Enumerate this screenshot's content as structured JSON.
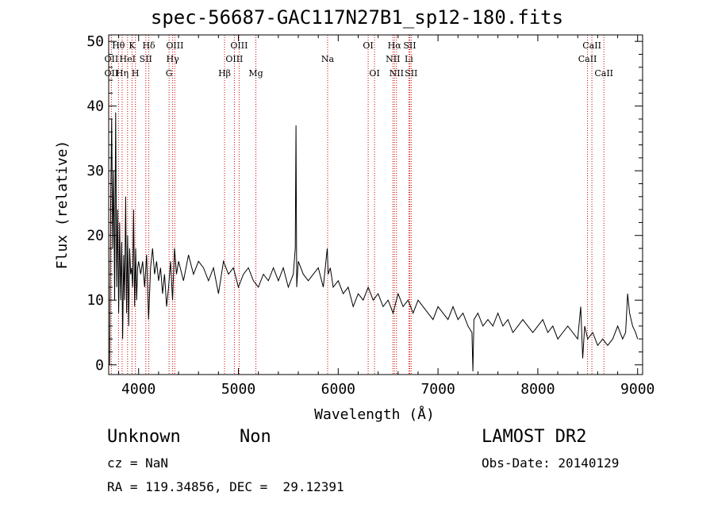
{
  "chart_data": {
    "type": "line",
    "title": "spec-56687-GAC117N27B1_sp12-180.fits",
    "xlabel": "Wavelength (Å)",
    "ylabel": "Flux (relative)",
    "xlim": [
      3700,
      9050
    ],
    "ylim": [
      -1.5,
      51
    ],
    "xticks": [
      4000,
      5000,
      6000,
      7000,
      8000,
      9000
    ],
    "yticks": [
      0,
      10,
      20,
      30,
      40,
      50
    ],
    "grid": false,
    "line_color": "#000000",
    "marker_color": "#cc0000",
    "series": [
      {
        "x": [
          3710,
          3720,
          3730,
          3740,
          3750,
          3760,
          3770,
          3780,
          3790,
          3800,
          3810,
          3820,
          3830,
          3840,
          3850,
          3860,
          3870,
          3880,
          3890,
          3900,
          3910,
          3920,
          3930,
          3940,
          3950,
          3960,
          3970,
          3980,
          3990,
          4000,
          4020,
          4040,
          4060,
          4080,
          4100,
          4120,
          4140,
          4160,
          4180,
          4200,
          4220,
          4240,
          4260,
          4280,
          4300,
          4320,
          4340,
          4360,
          4380,
          4400,
          4450,
          4500,
          4550,
          4600,
          4650,
          4700,
          4750,
          4800,
          4850,
          4900,
          4950,
          5000,
          5050,
          5100,
          5150,
          5200,
          5250,
          5300,
          5350,
          5400,
          5450,
          5500,
          5550,
          5570,
          5577,
          5584,
          5600,
          5650,
          5700,
          5750,
          5800,
          5850,
          5890,
          5900,
          5920,
          5950,
          6000,
          6050,
          6100,
          6150,
          6200,
          6250,
          6300,
          6350,
          6400,
          6450,
          6500,
          6550,
          6600,
          6650,
          6700,
          6750,
          6800,
          6850,
          6900,
          6950,
          7000,
          7050,
          7100,
          7150,
          7200,
          7250,
          7300,
          7340,
          7350,
          7360,
          7400,
          7450,
          7500,
          7550,
          7600,
          7650,
          7700,
          7750,
          7800,
          7850,
          7900,
          7950,
          8000,
          8050,
          8100,
          8150,
          8200,
          8250,
          8300,
          8350,
          8400,
          8430,
          8450,
          8470,
          8500,
          8550,
          8600,
          8650,
          8700,
          8750,
          8800,
          8850,
          8880,
          8900,
          8920,
          8950,
          8980,
          9000
        ],
        "y": [
          0,
          25,
          38,
          18,
          30,
          10,
          39,
          12,
          24,
          8,
          22,
          10,
          19,
          4,
          17,
          10,
          26,
          8,
          20,
          6,
          18,
          14,
          15,
          12,
          24,
          9,
          18,
          10,
          15,
          16,
          14,
          16,
          12,
          17,
          7,
          15,
          18,
          14,
          16,
          13,
          15,
          11,
          14,
          9,
          12,
          16,
          10,
          18,
          14,
          16,
          13,
          17,
          14,
          16,
          15,
          13,
          15,
          11,
          16,
          14,
          15,
          12,
          14,
          15,
          13,
          12,
          14,
          13,
          15,
          13,
          15,
          12,
          14,
          18,
          37,
          12,
          16,
          14,
          13,
          14,
          15,
          12,
          18,
          14,
          15,
          12,
          13,
          11,
          12,
          9,
          11,
          10,
          12,
          10,
          11,
          9,
          10,
          8,
          11,
          9,
          10,
          8,
          10,
          9,
          8,
          7,
          9,
          8,
          7,
          9,
          7,
          8,
          6,
          5,
          -1,
          7,
          8,
          6,
          7,
          6,
          8,
          6,
          7,
          5,
          6,
          7,
          6,
          5,
          6,
          7,
          5,
          6,
          4,
          5,
          6,
          5,
          4,
          9,
          1,
          6,
          4,
          5,
          3,
          4,
          3,
          4,
          6,
          4,
          5,
          11,
          8,
          6,
          5,
          4
        ]
      }
    ],
    "lines": [
      {
        "name": "OII",
        "x": 3727,
        "row": 1
      },
      {
        "name": "OII",
        "x": 3727,
        "row": 2
      },
      {
        "name": "Hθ",
        "x": 3798,
        "row": 0
      },
      {
        "name": "Hη",
        "x": 3835,
        "row": 2
      },
      {
        "name": "HeI",
        "x": 3889,
        "row": 1
      },
      {
        "name": "K",
        "x": 3934,
        "row": 0
      },
      {
        "name": "H",
        "x": 3968,
        "row": 2
      },
      {
        "name": "SII",
        "x": 4072,
        "row": 1
      },
      {
        "name": "Hδ",
        "x": 4102,
        "row": 0
      },
      {
        "name": "OIII",
        "x": 4363,
        "row": 0
      },
      {
        "name": "Hγ",
        "x": 4341,
        "row": 1
      },
      {
        "name": "G",
        "x": 4305,
        "row": 2
      },
      {
        "name": "Hβ",
        "x": 4861,
        "row": 2
      },
      {
        "name": "OIII",
        "x": 5007,
        "row": 0
      },
      {
        "name": "OIII",
        "x": 4959,
        "row": 1
      },
      {
        "name": "Mg",
        "x": 5175,
        "row": 2
      },
      {
        "name": "Na",
        "x": 5894,
        "row": 1
      },
      {
        "name": "OI",
        "x": 6300,
        "row": 0
      },
      {
        "name": "OI",
        "x": 6364,
        "row": 2
      },
      {
        "name": "Hα",
        "x": 6563,
        "row": 0
      },
      {
        "name": "NII",
        "x": 6548,
        "row": 1
      },
      {
        "name": "NII",
        "x": 6584,
        "row": 2
      },
      {
        "name": "SII",
        "x": 6717,
        "row": 0
      },
      {
        "name": "Li",
        "x": 6708,
        "row": 1
      },
      {
        "name": "SII",
        "x": 6731,
        "row": 2
      },
      {
        "name": "CaII",
        "x": 8542,
        "row": 0
      },
      {
        "name": "CaII",
        "x": 8498,
        "row": 1
      },
      {
        "name": "CaII",
        "x": 8662,
        "row": 2
      }
    ]
  },
  "info": {
    "class": "Unknown",
    "subclass": "Non",
    "cz": "cz = NaN",
    "coords": "RA = 119.34856, DEC =  29.12391",
    "survey": "LAMOST DR2",
    "obs_date": "Obs-Date: 20140129"
  }
}
